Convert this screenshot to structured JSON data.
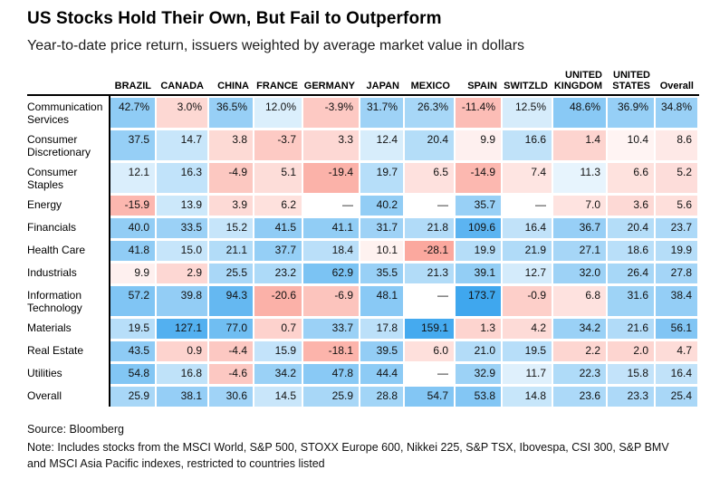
{
  "header": {
    "title": "US Stocks Hold Their Own, But Fail to Outperform",
    "subtitle": "Year-to-date price return, issuers weighted by average market value in dollars"
  },
  "footer": {
    "source": "Source: Bloomberg",
    "note": "Note: Includes stocks from the MSCI World, S&P 500, STOXX Europe 600, Nikkei 225, S&P TSX, Ibovespa, CSI 300, S&P BMV and MSCI Asia Pacific indexes, restricted to countries listed"
  },
  "chart_data": {
    "type": "heatmap",
    "title": "US Stocks Hold Their Own, But Fail to Outperform",
    "subtitle": "Year-to-date price return, issuers weighted by average market value in dollars",
    "columns": [
      "BRAZIL",
      "CANADA",
      "CHINA",
      "FRANCE",
      "GERMANY",
      "JAPAN",
      "MEXICO",
      "SPAIN",
      "SWITZLD",
      "UNITED\nKINGDOM",
      "UNITED\nSTATES",
      "Overall"
    ],
    "rows": [
      {
        "label": "Communication Services",
        "values": [
          42.7,
          3.0,
          36.5,
          12.0,
          -3.9,
          31.7,
          26.3,
          -11.4,
          12.5,
          48.6,
          36.9,
          34.8
        ]
      },
      {
        "label": "Consumer Discretionary",
        "values": [
          37.5,
          14.7,
          3.8,
          -3.7,
          3.3,
          12.4,
          20.4,
          9.9,
          16.6,
          1.4,
          10.4,
          8.6
        ]
      },
      {
        "label": "Consumer Staples",
        "values": [
          12.1,
          16.3,
          -4.9,
          5.1,
          -19.4,
          19.7,
          6.5,
          -14.9,
          7.4,
          11.3,
          6.6,
          5.2
        ]
      },
      {
        "label": "Energy",
        "values": [
          -15.9,
          13.9,
          3.9,
          6.2,
          null,
          40.2,
          null,
          35.7,
          null,
          7.0,
          3.6,
          5.6
        ]
      },
      {
        "label": "Financials",
        "values": [
          40.0,
          33.5,
          15.2,
          41.5,
          41.1,
          31.7,
          21.8,
          109.6,
          16.4,
          36.7,
          20.4,
          23.7
        ]
      },
      {
        "label": "Health Care",
        "values": [
          41.8,
          15.0,
          21.1,
          37.7,
          18.4,
          10.1,
          -28.1,
          19.9,
          21.9,
          27.1,
          18.6,
          19.9
        ]
      },
      {
        "label": "Industrials",
        "values": [
          9.9,
          2.9,
          25.5,
          23.2,
          62.9,
          35.5,
          21.3,
          39.1,
          12.7,
          32.0,
          26.4,
          27.8
        ]
      },
      {
        "label": "Information Technology",
        "values": [
          57.2,
          39.8,
          94.3,
          -20.6,
          -6.9,
          48.1,
          null,
          173.7,
          -0.9,
          6.8,
          31.6,
          38.4
        ]
      },
      {
        "label": "Materials",
        "values": [
          19.5,
          127.1,
          77.0,
          0.7,
          33.7,
          17.8,
          159.1,
          1.3,
          4.2,
          34.2,
          21.6,
          56.1
        ]
      },
      {
        "label": "Real Estate",
        "values": [
          43.5,
          0.9,
          -4.4,
          15.9,
          -18.1,
          39.5,
          6.0,
          21.0,
          19.5,
          2.2,
          2.0,
          4.7
        ]
      },
      {
        "label": "Utilities",
        "values": [
          54.8,
          16.8,
          -4.6,
          34.2,
          47.8,
          44.4,
          null,
          32.9,
          11.7,
          22.3,
          15.8,
          16.4
        ]
      },
      {
        "label": "Overall",
        "values": [
          25.9,
          38.1,
          30.6,
          14.5,
          25.9,
          28.8,
          54.7,
          53.8,
          14.8,
          23.6,
          23.3,
          25.4
        ]
      }
    ],
    "first_row_percent": true,
    "missing_marker": "—",
    "value_decimals": 1,
    "color_scale": {
      "mid": 11,
      "max": 173.7,
      "min": -28.1,
      "pos_color": "#3fa7ee",
      "neg_color": "#fba89e",
      "missing_color": "#ffffff",
      "pos_exp": 0.33,
      "neg_exp": 0.5
    }
  }
}
